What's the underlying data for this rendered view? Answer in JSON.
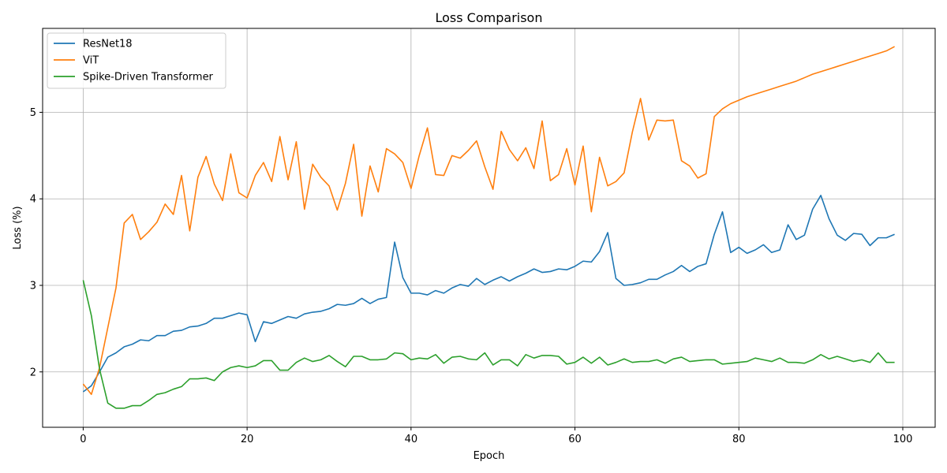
{
  "chart_data": {
    "type": "line",
    "title": "Loss Comparison",
    "xlabel": "Epoch",
    "ylabel": "Loss (%)",
    "xlim": [
      -4.95,
      103.95
    ],
    "ylim": [
      1.36,
      5.97
    ],
    "xticks": [
      0,
      20,
      40,
      60,
      80,
      100
    ],
    "yticks": [
      2,
      3,
      4,
      5
    ],
    "xtick_labels": [
      "0",
      "20",
      "40",
      "60",
      "80",
      "100"
    ],
    "ytick_labels": [
      "2",
      "3",
      "4",
      "5"
    ],
    "grid": true,
    "legend_position": "top-left",
    "x": [
      0,
      1,
      2,
      3,
      4,
      5,
      6,
      7,
      8,
      9,
      10,
      11,
      12,
      13,
      14,
      15,
      16,
      17,
      18,
      19,
      20,
      21,
      22,
      23,
      24,
      25,
      26,
      27,
      28,
      29,
      30,
      31,
      32,
      33,
      34,
      35,
      36,
      37,
      38,
      39,
      40,
      41,
      42,
      43,
      44,
      45,
      46,
      47,
      48,
      49,
      50,
      51,
      52,
      53,
      54,
      55,
      56,
      57,
      58,
      59,
      60,
      61,
      62,
      63,
      64,
      65,
      66,
      67,
      68,
      69,
      70,
      71,
      72,
      73,
      74,
      75,
      76,
      77,
      78,
      79,
      80,
      81,
      82,
      83,
      84,
      85,
      86,
      87,
      88,
      89,
      90,
      91,
      92,
      93,
      94,
      95,
      96,
      97,
      98,
      99
    ],
    "series": [
      {
        "name": "ResNet18",
        "color": "#1f77b4",
        "values": [
          1.77,
          1.84,
          2.0,
          2.17,
          2.22,
          2.29,
          2.32,
          2.37,
          2.36,
          2.42,
          2.42,
          2.47,
          2.48,
          2.52,
          2.53,
          2.56,
          2.62,
          2.62,
          2.65,
          2.68,
          2.66,
          2.35,
          2.58,
          2.56,
          2.6,
          2.64,
          2.62,
          2.67,
          2.69,
          2.7,
          2.73,
          2.78,
          2.77,
          2.79,
          2.85,
          2.79,
          2.84,
          2.86,
          3.5,
          3.09,
          2.91,
          2.91,
          2.89,
          2.94,
          2.91,
          2.97,
          3.01,
          2.99,
          3.08,
          3.01,
          3.06,
          3.1,
          3.05,
          3.1,
          3.14,
          3.19,
          3.15,
          3.16,
          3.19,
          3.18,
          3.22,
          3.28,
          3.27,
          3.39,
          3.61,
          3.08,
          3.0,
          3.01,
          3.03,
          3.07,
          3.07,
          3.12,
          3.16,
          3.23,
          3.16,
          3.22,
          3.25,
          3.59,
          3.85,
          3.38,
          3.44,
          3.37,
          3.41,
          3.47,
          3.38,
          3.41,
          3.7,
          3.53,
          3.58,
          3.88,
          4.04,
          3.77,
          3.58,
          3.52,
          3.6,
          3.59,
          3.46,
          3.55,
          3.55,
          3.59
        ]
      },
      {
        "name": "ViT",
        "color": "#ff7f0e",
        "values": [
          1.86,
          1.74,
          2.05,
          2.51,
          2.97,
          3.72,
          3.82,
          3.53,
          3.62,
          3.73,
          3.94,
          3.82,
          4.27,
          3.63,
          4.25,
          4.49,
          4.17,
          3.98,
          4.52,
          4.07,
          4.01,
          4.27,
          4.42,
          4.2,
          4.72,
          4.22,
          4.66,
          3.88,
          4.4,
          4.25,
          4.15,
          3.87,
          4.18,
          4.63,
          3.8,
          4.38,
          4.08,
          4.58,
          4.52,
          4.42,
          4.12,
          4.5,
          4.82,
          4.28,
          4.27,
          4.5,
          4.47,
          4.56,
          4.67,
          4.37,
          4.11,
          4.78,
          4.57,
          4.44,
          4.59,
          4.35,
          4.9,
          4.21,
          4.28,
          4.58,
          4.16,
          4.61,
          3.85,
          4.48,
          4.15,
          4.2,
          4.3,
          4.77,
          5.16,
          4.68,
          4.91,
          4.9,
          4.91,
          4.44,
          4.38,
          4.24,
          4.29,
          4.95,
          5.04,
          5.1,
          5.14,
          5.18,
          5.21,
          5.24,
          5.27,
          5.3,
          5.33,
          5.36,
          5.4,
          5.44,
          5.47,
          5.5,
          5.53,
          5.56,
          5.59,
          5.62,
          5.65,
          5.68,
          5.71,
          5.76
        ]
      },
      {
        "name": "Spike-Driven Transformer",
        "color": "#2ca02c",
        "values": [
          3.06,
          2.65,
          2.03,
          1.64,
          1.58,
          1.58,
          1.61,
          1.61,
          1.67,
          1.74,
          1.76,
          1.8,
          1.83,
          1.92,
          1.92,
          1.93,
          1.9,
          2.0,
          2.05,
          2.07,
          2.05,
          2.07,
          2.13,
          2.13,
          2.02,
          2.02,
          2.11,
          2.16,
          2.12,
          2.14,
          2.19,
          2.12,
          2.06,
          2.18,
          2.18,
          2.14,
          2.14,
          2.15,
          2.22,
          2.21,
          2.14,
          2.16,
          2.15,
          2.2,
          2.1,
          2.17,
          2.18,
          2.15,
          2.14,
          2.22,
          2.08,
          2.14,
          2.14,
          2.07,
          2.2,
          2.16,
          2.19,
          2.19,
          2.18,
          2.09,
          2.11,
          2.17,
          2.1,
          2.17,
          2.08,
          2.11,
          2.15,
          2.11,
          2.12,
          2.12,
          2.14,
          2.1,
          2.15,
          2.17,
          2.12,
          2.13,
          2.14,
          2.14,
          2.09,
          2.1,
          2.11,
          2.12,
          2.16,
          2.14,
          2.12,
          2.16,
          2.11,
          2.11,
          2.1,
          2.14,
          2.2,
          2.15,
          2.18,
          2.15,
          2.12,
          2.14,
          2.11,
          2.22,
          2.11,
          2.11
        ]
      }
    ]
  }
}
